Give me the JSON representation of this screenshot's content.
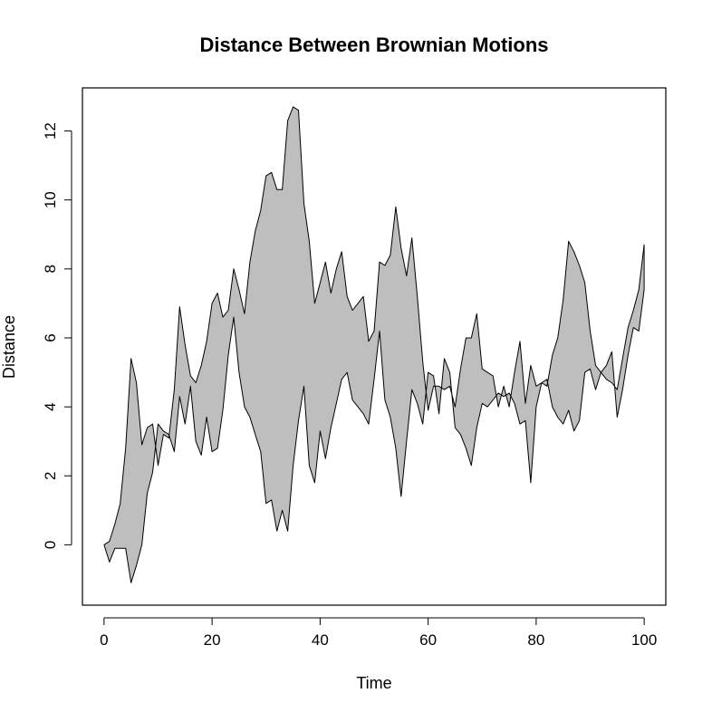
{
  "chart_data": {
    "type": "area",
    "title": "Distance Between Brownian Motions",
    "xlabel": "Time",
    "ylabel": "Distance",
    "xlim": [
      -4,
      104
    ],
    "ylim": [
      -1.75,
      13.25
    ],
    "xticks": [
      0,
      20,
      40,
      60,
      80,
      100
    ],
    "yticks": [
      0,
      2,
      4,
      6,
      8,
      10,
      12
    ],
    "grid": false,
    "legend": "none",
    "fill_color": "#bebebe",
    "line_color": "#000000",
    "x": [
      0,
      1,
      2,
      3,
      4,
      5,
      6,
      7,
      8,
      9,
      10,
      11,
      12,
      13,
      14,
      15,
      16,
      17,
      18,
      19,
      20,
      21,
      22,
      23,
      24,
      25,
      26,
      27,
      28,
      29,
      30,
      31,
      32,
      33,
      34,
      35,
      36,
      37,
      38,
      39,
      40,
      41,
      42,
      43,
      44,
      45,
      46,
      47,
      48,
      49,
      50,
      51,
      52,
      53,
      54,
      55,
      56,
      57,
      58,
      59,
      60,
      61,
      62,
      63,
      64,
      65,
      66,
      67,
      68,
      69,
      70,
      71,
      72,
      73,
      74,
      75,
      76,
      77,
      78,
      79,
      80,
      81,
      82,
      83,
      84,
      85,
      86,
      87,
      88,
      89,
      90,
      91,
      92,
      93,
      94,
      95,
      96,
      97,
      98,
      99,
      100
    ],
    "series": [
      {
        "values": [
          0.0,
          0.1,
          0.6,
          1.2,
          2.8,
          5.4,
          4.7,
          2.9,
          3.4,
          3.5,
          2.3,
          3.2,
          3.1,
          4.5,
          6.9,
          5.8,
          4.9,
          4.7,
          5.2,
          5.9,
          7.0,
          7.3,
          6.6,
          6.8,
          8.0,
          7.4,
          6.7,
          8.2,
          9.1,
          9.7,
          10.7,
          10.8,
          10.3,
          10.3,
          12.3,
          12.7,
          12.6,
          9.9,
          8.8,
          7.0,
          7.6,
          8.2,
          7.3,
          8.0,
          8.5,
          7.2,
          6.8,
          7.0,
          7.2,
          5.9,
          6.2,
          8.2,
          8.1,
          8.4,
          9.8,
          8.6,
          7.8,
          8.9,
          7.2,
          5.3,
          3.9,
          4.6,
          4.6,
          4.5,
          4.6,
          4.0,
          5.1,
          6.0,
          6.0,
          6.7,
          5.1,
          5.0,
          4.9,
          4.0,
          4.6,
          4.0,
          5.0,
          5.9,
          4.1,
          5.2,
          4.6,
          4.7,
          4.6,
          5.5,
          6.0,
          7.1,
          8.8,
          8.5,
          8.1,
          7.6,
          6.2,
          5.2,
          5.0,
          4.8,
          4.7,
          4.5,
          5.4,
          6.3,
          6.8,
          7.4,
          8.7
        ]
      },
      {
        "values": [
          0.0,
          -0.5,
          -0.1,
          -0.1,
          -0.1,
          -1.1,
          -0.6,
          0.0,
          1.5,
          2.1,
          3.5,
          3.3,
          3.2,
          2.7,
          4.3,
          3.5,
          4.6,
          3.0,
          2.6,
          3.7,
          2.7,
          2.8,
          3.9,
          5.5,
          6.6,
          5.0,
          4.0,
          3.7,
          3.2,
          2.7,
          1.2,
          1.3,
          0.4,
          1.0,
          0.4,
          2.3,
          3.6,
          4.6,
          2.3,
          1.8,
          3.3,
          2.5,
          3.4,
          4.1,
          4.8,
          5.0,
          4.2,
          4.0,
          3.8,
          3.5,
          4.8,
          6.2,
          4.2,
          3.7,
          2.8,
          1.4,
          3.0,
          4.5,
          4.1,
          3.5,
          5.0,
          4.9,
          3.8,
          5.4,
          5.0,
          3.4,
          3.2,
          2.8,
          2.3,
          3.4,
          4.1,
          4.0,
          4.2,
          4.4,
          4.3,
          4.4,
          4.1,
          3.5,
          3.6,
          1.8,
          4.0,
          4.7,
          4.8,
          4.0,
          3.7,
          3.5,
          3.9,
          3.3,
          3.6,
          5.0,
          5.1,
          4.5,
          5.0,
          5.2,
          5.6,
          3.7,
          4.5,
          5.5,
          6.3,
          6.2,
          7.4
        ]
      }
    ]
  }
}
